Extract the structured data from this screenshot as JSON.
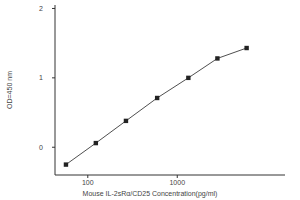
{
  "chart_data": {
    "type": "line",
    "x_label": "Mouse IL-2sRα/CD25 Concentration(pg/ml)",
    "y_label": "OD=450 nm",
    "x": [
      57,
      123,
      267,
      596,
      1330,
      2810,
      5960
    ],
    "values": [
      -0.25,
      0.06,
      0.38,
      0.71,
      1.0,
      1.28,
      1.43
    ],
    "color": "#222222",
    "marker": "square",
    "log": "x",
    "xlim": [
      43,
      16000
    ],
    "xticks": [
      100,
      1000
    ],
    "ylim": [
      -0.4,
      2.05
    ],
    "yticks": [
      0,
      1,
      2
    ],
    "grid": false
  }
}
